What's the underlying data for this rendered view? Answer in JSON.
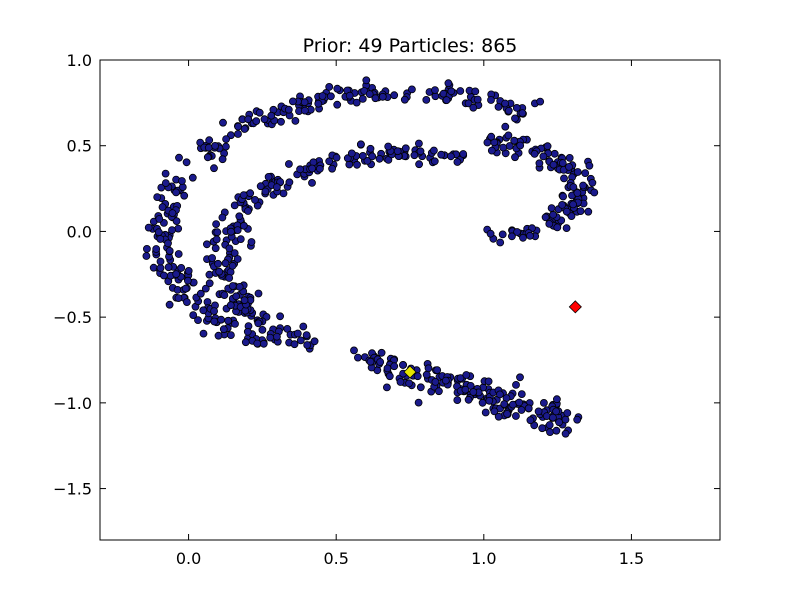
{
  "chart_data": {
    "type": "scatter",
    "title": "Prior: 49 Particles: 865",
    "xlabel": "",
    "ylabel": "",
    "xlim": [
      -0.3,
      1.8
    ],
    "ylim": [
      -1.8,
      1.0
    ],
    "xticks": [
      0.0,
      0.5,
      1.0,
      1.5
    ],
    "xtick_labels": [
      "0.0",
      "0.5",
      "1.0",
      "1.5"
    ],
    "yticks": [
      1.0,
      0.5,
      0.0,
      -0.5,
      -1.0,
      -1.5
    ],
    "ytick_labels": [
      "1.0",
      "0.5",
      "0.0",
      "−0.5",
      "−1.0",
      "−1.5"
    ],
    "grid": false,
    "legend": "none",
    "particle_count": 865,
    "particle_color": "#1a1a8c",
    "particle_distribution": [
      {
        "shape": "arc",
        "center": [
          0.72,
          0.0
        ],
        "radius": 0.81,
        "angle_deg": [
          58,
          235
        ],
        "count": 300
      },
      {
        "shape": "arc",
        "center": [
          0.72,
          -0.15
        ],
        "radius": 0.6,
        "angle_deg": [
          70,
          240
        ],
        "count": 240
      },
      {
        "shape": "line",
        "from": [
          0.6,
          -0.75
        ],
        "to": [
          1.28,
          -1.1
        ],
        "count": 180
      },
      {
        "shape": "arc",
        "center": [
          1.05,
          0.25
        ],
        "radius": 0.27,
        "angle_deg": [
          -100,
          100
        ],
        "count": 145
      }
    ],
    "markers": [
      {
        "name": "yellow-diamond",
        "shape": "diamond",
        "x": 0.75,
        "y": -0.82,
        "color": "#e6e600"
      },
      {
        "name": "red-diamond",
        "shape": "diamond",
        "x": 1.31,
        "y": -0.44,
        "color": "#ff0000"
      }
    ]
  }
}
